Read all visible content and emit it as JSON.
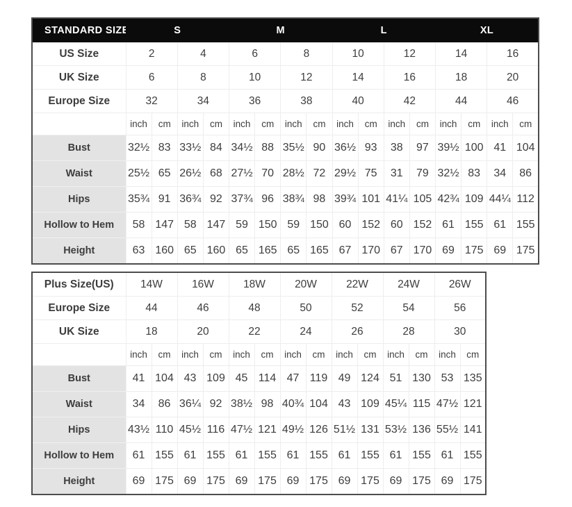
{
  "colors": {
    "header_bg": "#0b0b0b",
    "header_text": "#ffffff",
    "label_cell_bg": "#e3e3e3",
    "outer_border": "#4c4c4c",
    "grid_line": "#ededed",
    "value_text": "#3d3d3d",
    "label_text": "#141414"
  },
  "chart_data": [
    {
      "type": "table",
      "title": "STANDARD SIZE",
      "group_headers": [
        "S",
        "M",
        "L",
        "XL"
      ],
      "size_rows": [
        {
          "label": "US Size",
          "values": [
            "2",
            "4",
            "6",
            "8",
            "10",
            "12",
            "14",
            "16"
          ]
        },
        {
          "label": "UK Size",
          "values": [
            "6",
            "8",
            "10",
            "12",
            "14",
            "16",
            "18",
            "20"
          ]
        },
        {
          "label": "Europe Size",
          "values": [
            "32",
            "34",
            "36",
            "38",
            "40",
            "42",
            "44",
            "46"
          ]
        }
      ],
      "units": [
        "inch",
        "cm"
      ],
      "measure_rows": [
        {
          "label": "Bust",
          "values": [
            "32½",
            "83",
            "33½",
            "84",
            "34½",
            "88",
            "35½",
            "90",
            "36½",
            "93",
            "38",
            "97",
            "39½",
            "100",
            "41",
            "104"
          ]
        },
        {
          "label": "Waist",
          "values": [
            "25½",
            "65",
            "26½",
            "68",
            "27½",
            "70",
            "28½",
            "72",
            "29½",
            "75",
            "31",
            "79",
            "32½",
            "83",
            "34",
            "86"
          ]
        },
        {
          "label": "Hips",
          "values": [
            "35¾",
            "91",
            "36¾",
            "92",
            "37¾",
            "96",
            "38¾",
            "98",
            "39¾",
            "101",
            "41¼",
            "105",
            "42¾",
            "109",
            "44¼",
            "112"
          ]
        },
        {
          "label": "Hollow to Hem",
          "values": [
            "58",
            "147",
            "58",
            "147",
            "59",
            "150",
            "59",
            "150",
            "60",
            "152",
            "60",
            "152",
            "61",
            "155",
            "61",
            "155"
          ]
        },
        {
          "label": "Height",
          "values": [
            "63",
            "160",
            "65",
            "160",
            "65",
            "165",
            "65",
            "165",
            "67",
            "170",
            "67",
            "170",
            "69",
            "175",
            "69",
            "175"
          ]
        }
      ]
    },
    {
      "type": "table",
      "title": "Plus Size(US)",
      "size_rows": [
        {
          "label": "Plus Size(US)",
          "values": [
            "14W",
            "16W",
            "18W",
            "20W",
            "22W",
            "24W",
            "26W"
          ]
        },
        {
          "label": "Europe Size",
          "values": [
            "44",
            "46",
            "48",
            "50",
            "52",
            "54",
            "56"
          ]
        },
        {
          "label": "UK Size",
          "values": [
            "18",
            "20",
            "22",
            "24",
            "26",
            "28",
            "30"
          ]
        }
      ],
      "units": [
        "inch",
        "cm"
      ],
      "measure_rows": [
        {
          "label": "Bust",
          "values": [
            "41",
            "104",
            "43",
            "109",
            "45",
            "114",
            "47",
            "119",
            "49",
            "124",
            "51",
            "130",
            "53",
            "135"
          ]
        },
        {
          "label": "Waist",
          "values": [
            "34",
            "86",
            "36¼",
            "92",
            "38½",
            "98",
            "40¾",
            "104",
            "43",
            "109",
            "45¼",
            "115",
            "47½",
            "121"
          ]
        },
        {
          "label": "Hips",
          "values": [
            "43½",
            "110",
            "45½",
            "116",
            "47½",
            "121",
            "49½",
            "126",
            "51½",
            "131",
            "53½",
            "136",
            "55½",
            "141"
          ]
        },
        {
          "label": "Hollow to Hem",
          "values": [
            "61",
            "155",
            "61",
            "155",
            "61",
            "155",
            "61",
            "155",
            "61",
            "155",
            "61",
            "155",
            "61",
            "155"
          ]
        },
        {
          "label": "Height",
          "values": [
            "69",
            "175",
            "69",
            "175",
            "69",
            "175",
            "69",
            "175",
            "69",
            "175",
            "69",
            "175",
            "69",
            "175"
          ]
        }
      ]
    }
  ]
}
